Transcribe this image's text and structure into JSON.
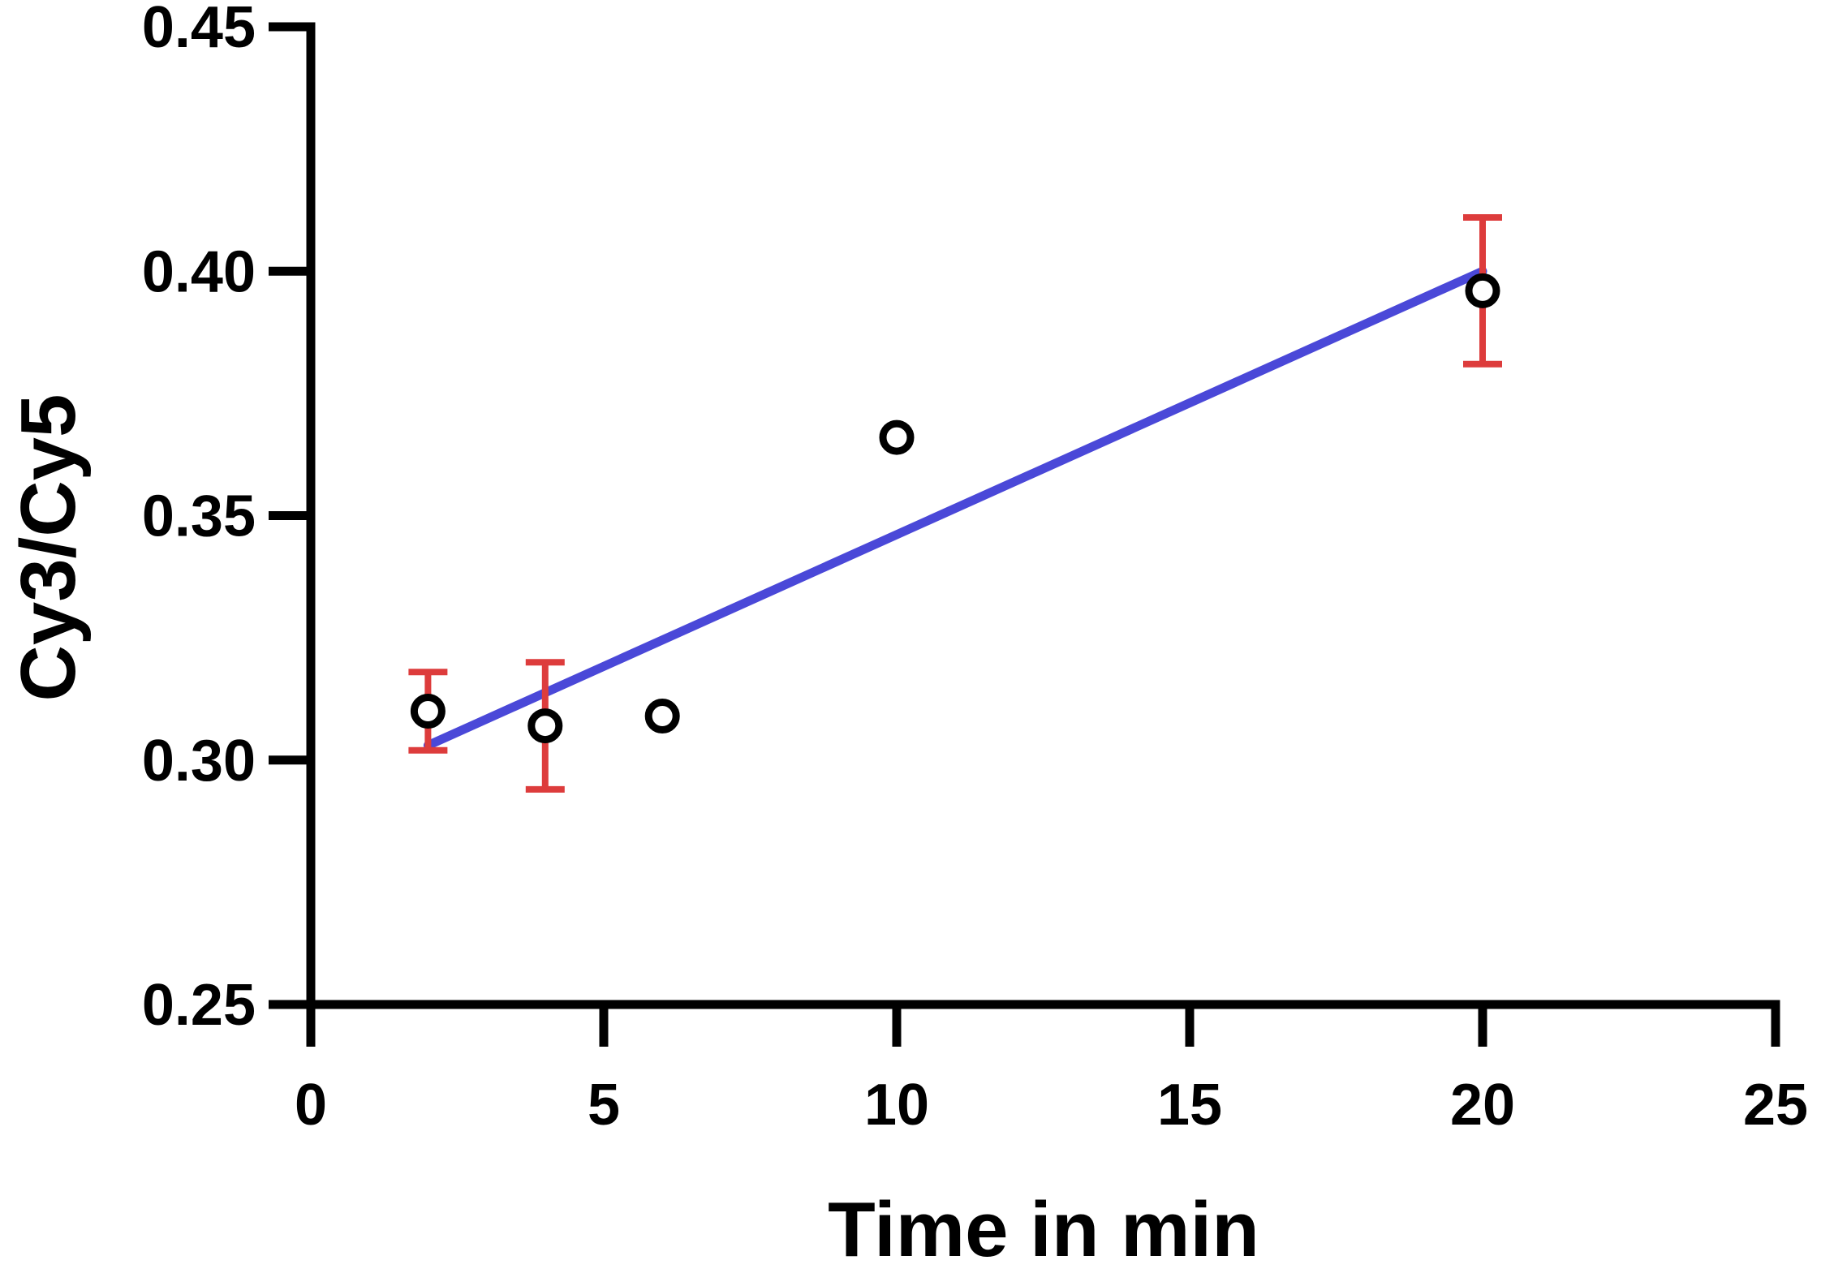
{
  "chart_data": {
    "type": "scatter",
    "title": "",
    "xlabel": "Time in min",
    "ylabel": "Cy3/Cy5",
    "xlim": [
      0,
      25
    ],
    "ylim": [
      0.25,
      0.45
    ],
    "xticks": [
      0,
      5,
      10,
      15,
      20,
      25
    ],
    "yticks": [
      0.25,
      0.3,
      0.35,
      0.4,
      0.45
    ],
    "xtick_labels": [
      "0",
      "5",
      "10",
      "15",
      "20",
      "25"
    ],
    "ytick_labels": [
      "0.25",
      "0.30",
      "0.35",
      "0.40",
      "0.45"
    ],
    "grid": false,
    "legend": "none",
    "points": [
      {
        "x": 2,
        "y": 0.31,
        "err_low": 0.302,
        "err_high": 0.318
      },
      {
        "x": 4,
        "y": 0.307,
        "err_low": 0.294,
        "err_high": 0.32
      },
      {
        "x": 6,
        "y": 0.309
      },
      {
        "x": 10,
        "y": 0.366
      },
      {
        "x": 20,
        "y": 0.396,
        "err_low": 0.381,
        "err_high": 0.411
      }
    ],
    "fit_line": {
      "x": [
        2,
        20
      ],
      "y": [
        0.303,
        0.4
      ]
    },
    "colors": {
      "axis": "#000000",
      "points": "#000000",
      "fit_line": "#4a48d8",
      "error_bars": "#dd3c3c"
    }
  }
}
